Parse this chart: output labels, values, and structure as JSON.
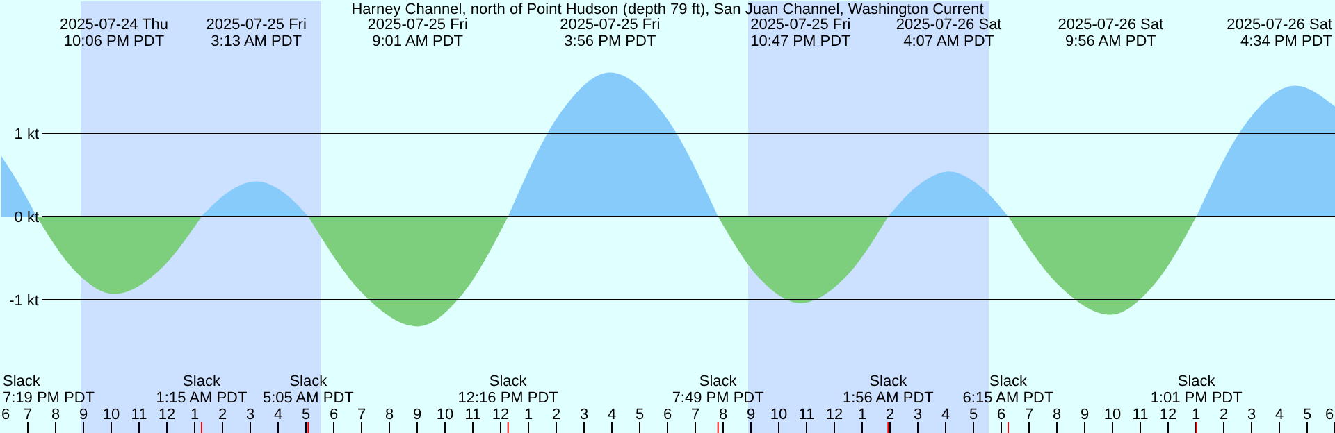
{
  "chart_data": {
    "type": "area",
    "title": "Harney Channel, north of Point Hudson (depth 79 ft), San Juan Channel, Washington Current",
    "xlim": [
      "2025-07-24T18:00",
      "2025-07-26T18:00"
    ],
    "ylim": [
      -2.6,
      2.6
    ],
    "yticks": [
      {
        "value": 1,
        "label": "1 kt"
      },
      {
        "value": 0,
        "label": "0 kt"
      },
      {
        "value": -1,
        "label": "-1 kt"
      }
    ],
    "xticks": [
      {
        "value": "2025-07-24T18:00",
        "label": "6"
      },
      {
        "value": "2025-07-24T19:00",
        "label": "7"
      },
      {
        "value": "2025-07-24T20:00",
        "label": "8"
      },
      {
        "value": "2025-07-24T21:00",
        "label": "9"
      },
      {
        "value": "2025-07-24T22:00",
        "label": "10"
      },
      {
        "value": "2025-07-24T23:00",
        "label": "11"
      },
      {
        "value": "2025-07-25T00:00",
        "label": "12"
      },
      {
        "value": "2025-07-25T01:00",
        "label": "1"
      },
      {
        "value": "2025-07-25T02:00",
        "label": "2"
      },
      {
        "value": "2025-07-25T03:00",
        "label": "3"
      },
      {
        "value": "2025-07-25T04:00",
        "label": "4"
      },
      {
        "value": "2025-07-25T05:00",
        "label": "5"
      },
      {
        "value": "2025-07-25T06:00",
        "label": "6"
      },
      {
        "value": "2025-07-25T07:00",
        "label": "7"
      },
      {
        "value": "2025-07-25T08:00",
        "label": "8"
      },
      {
        "value": "2025-07-25T09:00",
        "label": "9"
      },
      {
        "value": "2025-07-25T10:00",
        "label": "10"
      },
      {
        "value": "2025-07-25T11:00",
        "label": "11"
      },
      {
        "value": "2025-07-25T12:00",
        "label": "12"
      },
      {
        "value": "2025-07-25T13:00",
        "label": "1"
      },
      {
        "value": "2025-07-25T14:00",
        "label": "2"
      },
      {
        "value": "2025-07-25T15:00",
        "label": "3"
      },
      {
        "value": "2025-07-25T16:00",
        "label": "4"
      },
      {
        "value": "2025-07-25T17:00",
        "label": "5"
      },
      {
        "value": "2025-07-25T18:00",
        "label": "6"
      },
      {
        "value": "2025-07-25T19:00",
        "label": "7"
      },
      {
        "value": "2025-07-25T20:00",
        "label": "8"
      },
      {
        "value": "2025-07-25T21:00",
        "label": "9"
      },
      {
        "value": "2025-07-25T22:00",
        "label": "10"
      },
      {
        "value": "2025-07-25T23:00",
        "label": "11"
      },
      {
        "value": "2025-07-26T00:00",
        "label": "12"
      },
      {
        "value": "2025-07-26T01:00",
        "label": "1"
      },
      {
        "value": "2025-07-26T02:00",
        "label": "2"
      },
      {
        "value": "2025-07-26T03:00",
        "label": "3"
      },
      {
        "value": "2025-07-26T04:00",
        "label": "4"
      },
      {
        "value": "2025-07-26T05:00",
        "label": "5"
      },
      {
        "value": "2025-07-26T06:00",
        "label": "6"
      },
      {
        "value": "2025-07-26T07:00",
        "label": "7"
      },
      {
        "value": "2025-07-26T08:00",
        "label": "8"
      },
      {
        "value": "2025-07-26T09:00",
        "label": "9"
      },
      {
        "value": "2025-07-26T10:00",
        "label": "10"
      },
      {
        "value": "2025-07-26T11:00",
        "label": "11"
      },
      {
        "value": "2025-07-26T12:00",
        "label": "12"
      },
      {
        "value": "2025-07-26T13:00",
        "label": "1"
      },
      {
        "value": "2025-07-26T14:00",
        "label": "2"
      },
      {
        "value": "2025-07-26T15:00",
        "label": "3"
      },
      {
        "value": "2025-07-26T16:00",
        "label": "4"
      },
      {
        "value": "2025-07-26T17:00",
        "label": "5"
      },
      {
        "value": "2025-07-26T18:00",
        "label": "6"
      }
    ],
    "x2ticks": [
      {
        "value": "2025-07-24T22:06",
        "label": "2025-07-24 Thu\n10:06 PM PDT"
      },
      {
        "value": "2025-07-25T03:13",
        "label": "2025-07-25 Fri\n3:13 AM PDT"
      },
      {
        "value": "2025-07-25T09:01",
        "label": "2025-07-25 Fri\n9:01 AM PDT"
      },
      {
        "value": "2025-07-25T15:56",
        "label": "2025-07-25 Fri\n3:56 PM PDT"
      },
      {
        "value": "2025-07-25T22:47",
        "label": "2025-07-25 Fri\n10:47 PM PDT"
      },
      {
        "value": "2025-07-26T04:07",
        "label": "2025-07-26 Sat\n4:07 AM PDT"
      },
      {
        "value": "2025-07-26T09:56",
        "label": "2025-07-26 Sat\n9:56 AM PDT"
      }
    ],
    "x2lim": [
      "2025-07-24T18:00",
      "2025-07-26T18:00"
    ],
    "grid": "y",
    "bands": [
      {
        "axis": "x",
        "from": "2025-07-24T20:54",
        "to": "2025-07-25T05:33",
        "color": "#cce0ff"
      },
      {
        "axis": "x",
        "from": "2025-07-25T20:54",
        "to": "2025-07-26T05:33",
        "color": "#cce0ff"
      }
    ],
    "series": [
      {
        "color": "#87cbfa",
        "x": [
          "2025-07-24T18:00",
          "2025-07-24T18:42",
          "2025-07-24T19:19",
          "2025-07-24T22:06",
          "2025-07-25T01:15",
          "2025-07-25T02:14",
          "2025-07-25T03:13",
          "2025-07-25T04:09",
          "2025-07-25T05:05",
          "2025-07-25T09:00",
          "2025-07-25T12:16",
          "2025-07-25T14:06",
          "2025-07-25T15:56",
          "2025-07-25T17:53",
          "2025-07-25T19:49",
          "2025-07-25T22:48",
          "2025-07-26T01:56",
          "2025-07-26T03:02",
          "2025-07-26T04:07",
          "2025-07-26T05:11",
          "2025-07-26T06:15",
          "2025-07-26T09:54",
          "2025-07-26T13:01",
          "2025-07-26T14:47",
          "2025-07-26T16:34",
          "2025-07-26T18:00"
        ],
        "values": [
          0.75,
          0.38,
          0,
          null,
          0,
          0.3,
          0.42,
          0.3,
          0,
          null,
          0,
          1.22,
          1.73,
          1.22,
          0,
          null,
          0,
          0.38,
          0.54,
          0.38,
          0,
          null,
          0,
          1.11,
          1.57,
          1.32
        ]
      },
      {
        "color": "#7dcf7d",
        "x": [
          "2025-07-24T19:19",
          "2025-07-24T20:43",
          "2025-07-24T22:06",
          "2025-07-24T23:41",
          "2025-07-25T01:15",
          "2025-07-25T03:12",
          "2025-07-25T05:05",
          "2025-07-25T07:03",
          "2025-07-25T09:01",
          "2025-07-25T10:38",
          "2025-07-25T12:16",
          "2025-07-25T15:54",
          "2025-07-25T19:49",
          "2025-07-25T21:18",
          "2025-07-25T22:47",
          "2025-07-26T00:22",
          "2025-07-26T01:56",
          "2025-07-26T04:06",
          "2025-07-26T06:15",
          "2025-07-26T08:05",
          "2025-07-26T09:56",
          "2025-07-26T11:28",
          "2025-07-26T13:01"
        ],
        "values": [
          0,
          -0.66,
          -0.93,
          -0.66,
          0,
          null,
          0,
          -0.93,
          -1.32,
          -0.93,
          0,
          null,
          0,
          -0.74,
          -1.04,
          -0.74,
          0,
          null,
          0,
          -0.83,
          -1.18,
          -0.83,
          0
        ]
      }
    ],
    "annotations": [
      "Slack\n7:19 PM PDT",
      "2025-07-26 Sat\n4:34 PM PDT",
      {
        "text": "Slack\n1:15 AM PDT",
        "x": "2025-07-25T01:15"
      },
      {
        "text": "Slack\n5:05 AM PDT",
        "x": "2025-07-25T05:05"
      },
      {
        "text": "Slack\n12:16 PM PDT",
        "x": "2025-07-25T12:16"
      },
      {
        "text": "Slack\n7:49 PM PDT",
        "x": "2025-07-25T19:49"
      },
      {
        "text": "Slack\n1:56 AM PDT",
        "x": "2025-07-26T01:56"
      },
      {
        "text": "Slack\n6:15 AM PDT",
        "x": "2025-07-26T06:15"
      },
      {
        "text": "Slack\n1:01 PM PDT",
        "x": "2025-07-26T13:01"
      }
    ]
  }
}
